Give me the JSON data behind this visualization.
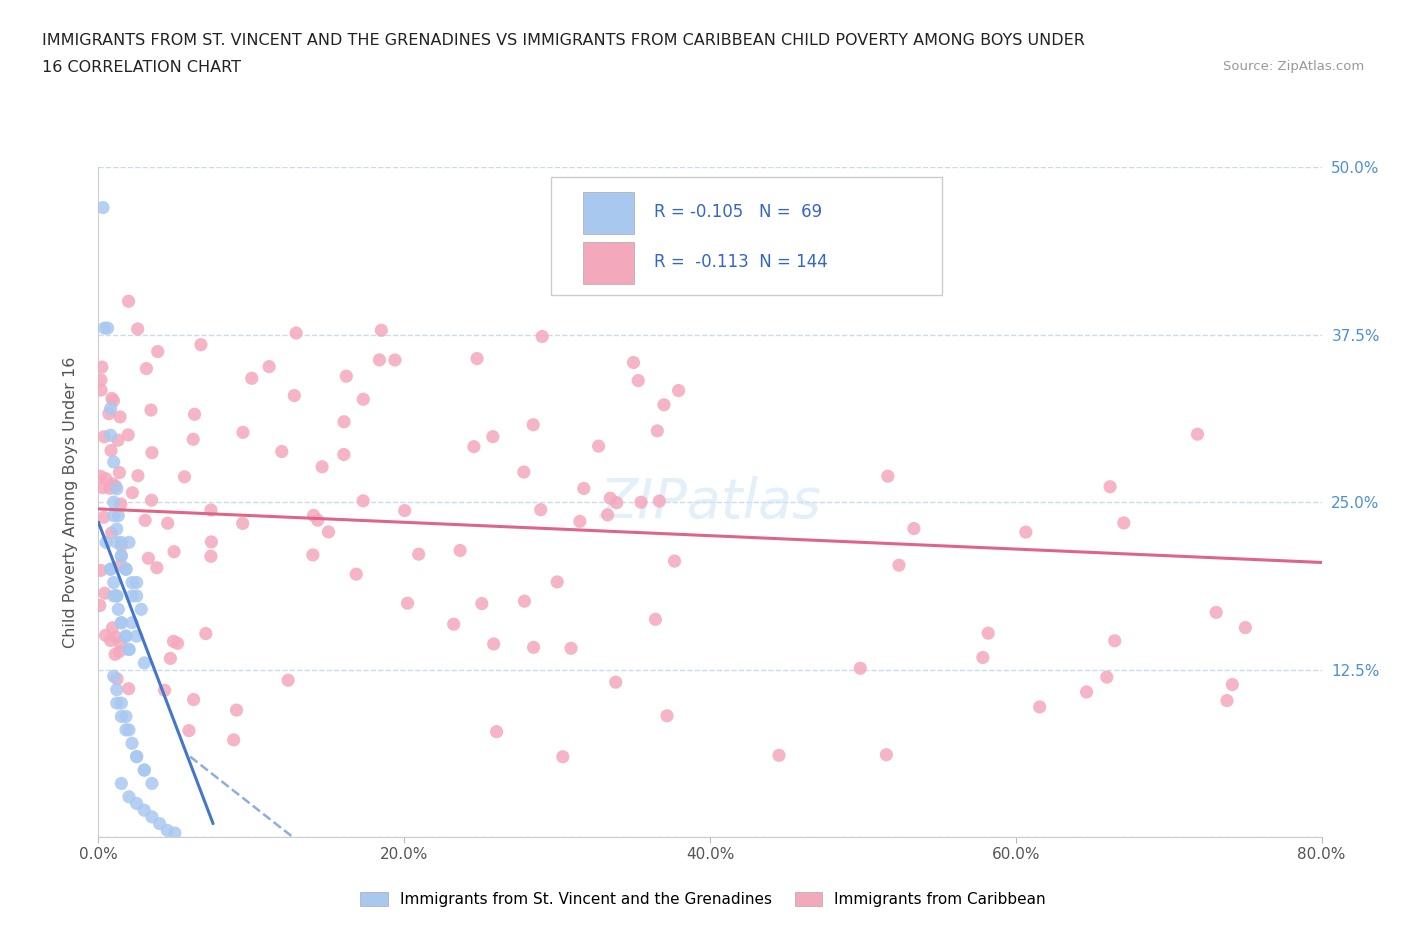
{
  "title_line1": "IMMIGRANTS FROM ST. VINCENT AND THE GRENADINES VS IMMIGRANTS FROM CARIBBEAN CHILD POVERTY AMONG BOYS UNDER",
  "title_line2": "16 CORRELATION CHART",
  "source": "Source: ZipAtlas.com",
  "ylabel": "Child Poverty Among Boys Under 16",
  "xlim": [
    0.0,
    0.8
  ],
  "ylim": [
    0.0,
    0.5
  ],
  "xtick_vals": [
    0.0,
    0.2,
    0.4,
    0.6,
    0.8
  ],
  "xtick_labels": [
    "0.0%",
    "20.0%",
    "40.0%",
    "60.0%",
    "80.0%"
  ],
  "ytick_vals": [
    0.125,
    0.25,
    0.375,
    0.5
  ],
  "ytick_labels": [
    "12.5%",
    "25.0%",
    "37.5%",
    "50.0%"
  ],
  "R_blue": -0.105,
  "N_blue": 69,
  "R_pink": -0.113,
  "N_pink": 144,
  "legend_label_blue": "Immigrants from St. Vincent and the Grenadines",
  "legend_label_pink": "Immigrants from Caribbean",
  "scatter_blue_color": "#a8c8f0",
  "scatter_pink_color": "#f4a8bc",
  "line_blue_color": "#4477cc",
  "line_pink_color": "#dd6688",
  "grid_color": "#c8dcf0",
  "watermark": "ZIPatlas",
  "title_color": "#222222",
  "axis_label_color": "#555555",
  "tick_color": "#4a90d9",
  "source_color": "#999999"
}
